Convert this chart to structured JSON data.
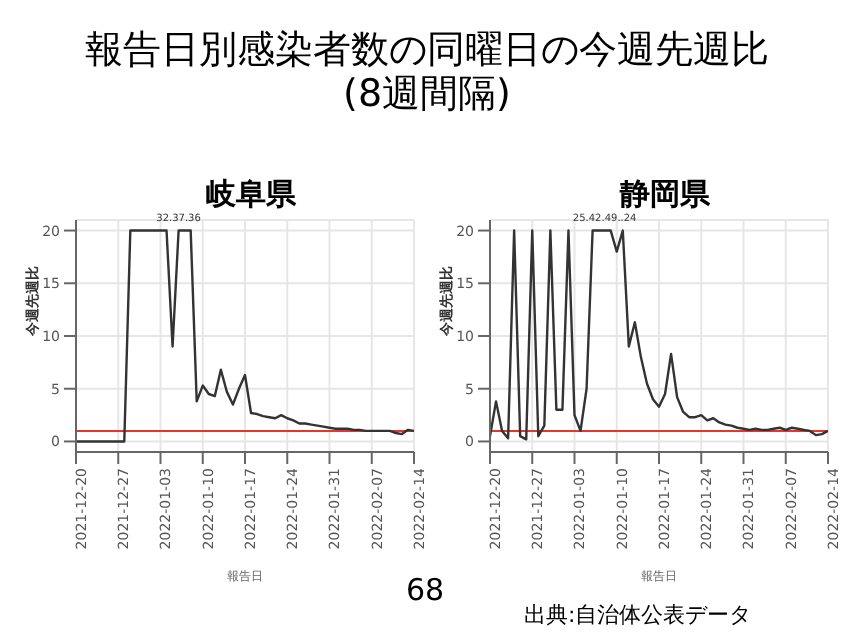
{
  "chart_data": [
    {
      "type": "line",
      "title": "岐阜県",
      "xlabel": "報告日",
      "ylabel": "今週先週比",
      "annotations": [
        "報告日別感染者数の同曜日の今週先週比\n(8週間隔)",
        {
          "text": "32.37.36",
          "x": "2022-01-06",
          "y": 20
        }
      ],
      "x": [
        "2021-12-20",
        "2021-12-21",
        "2021-12-22",
        "2021-12-23",
        "2021-12-24",
        "2021-12-25",
        "2021-12-26",
        "2021-12-27",
        "2021-12-28",
        "2021-12-29",
        "2021-12-30",
        "2021-12-31",
        "2022-01-01",
        "2022-01-02",
        "2022-01-03",
        "2022-01-04",
        "2022-01-05",
        "2022-01-06",
        "2022-01-07",
        "2022-01-08",
        "2022-01-09",
        "2022-01-10",
        "2022-01-11",
        "2022-01-12",
        "2022-01-13",
        "2022-01-14",
        "2022-01-15",
        "2022-01-16",
        "2022-01-17",
        "2022-01-18",
        "2022-01-19",
        "2022-01-20",
        "2022-01-21",
        "2022-01-22",
        "2022-01-23",
        "2022-01-24",
        "2022-01-25",
        "2022-01-26",
        "2022-01-27",
        "2022-01-28",
        "2022-01-29",
        "2022-01-30",
        "2022-01-31",
        "2022-02-01",
        "2022-02-02",
        "2022-02-03",
        "2022-02-04",
        "2022-02-05",
        "2022-02-06",
        "2022-02-07",
        "2022-02-08",
        "2022-02-09",
        "2022-02-10",
        "2022-02-11",
        "2022-02-12",
        "2022-02-13",
        "2022-02-14"
      ],
      "series": [
        {
          "color": "#333333",
          "values": [
            0,
            0,
            0,
            0,
            0,
            0,
            0,
            0,
            0,
            20,
            20,
            20,
            20,
            20,
            20,
            20,
            9,
            20,
            20,
            20,
            3.8,
            5.3,
            4.5,
            4.3,
            6.8,
            4.7,
            3.5,
            5,
            6.3,
            2.7,
            2.6,
            2.4,
            2.3,
            2.2,
            2.5,
            2.2,
            2,
            1.7,
            1.7,
            1.6,
            1.5,
            1.4,
            1.3,
            1.2,
            1.2,
            1.2,
            1.1,
            1.1,
            1,
            1,
            1,
            1,
            1,
            0.8,
            0.7,
            1.1,
            1
          ]
        }
      ],
      "xlim": [
        "2021-12-20",
        "2022-02-14"
      ],
      "xticks": [
        "2021-12-20",
        "2021-12-27",
        "2022-01-03",
        "2022-01-10",
        "2022-01-17",
        "2022-01-24",
        "2022-01-31",
        "2022-02-07",
        "2022-02-14"
      ],
      "ylim": [
        -1,
        21
      ],
      "yticks": [
        0,
        5,
        10,
        15,
        20
      ],
      "grid": true,
      "legend": false,
      "ref_lines": [
        {
          "axis": "y",
          "value": 1,
          "color": "#e8342c"
        }
      ]
    },
    {
      "type": "line",
      "title": "静岡県",
      "xlabel": "報告日",
      "ylabel": "今週先週比",
      "annotations": [
        "68",
        "出典:自治体公表データ",
        {
          "text": "25.42.49..24",
          "x": "2022-01-08",
          "y": 20
        }
      ],
      "x": [
        "2021-12-20",
        "2021-12-21",
        "2021-12-22",
        "2021-12-23",
        "2021-12-24",
        "2021-12-25",
        "2021-12-26",
        "2021-12-27",
        "2021-12-28",
        "2021-12-29",
        "2021-12-30",
        "2021-12-31",
        "2022-01-01",
        "2022-01-02",
        "2022-01-03",
        "2022-01-04",
        "2022-01-05",
        "2022-01-06",
        "2022-01-07",
        "2022-01-08",
        "2022-01-09",
        "2022-01-10",
        "2022-01-11",
        "2022-01-12",
        "2022-01-13",
        "2022-01-14",
        "2022-01-15",
        "2022-01-16",
        "2022-01-17",
        "2022-01-18",
        "2022-01-19",
        "2022-01-20",
        "2022-01-21",
        "2022-01-22",
        "2022-01-23",
        "2022-01-24",
        "2022-01-25",
        "2022-01-26",
        "2022-01-27",
        "2022-01-28",
        "2022-01-29",
        "2022-01-30",
        "2022-01-31",
        "2022-02-01",
        "2022-02-02",
        "2022-02-03",
        "2022-02-04",
        "2022-02-05",
        "2022-02-06",
        "2022-02-07",
        "2022-02-08",
        "2022-02-09",
        "2022-02-10",
        "2022-02-11",
        "2022-02-12",
        "2022-02-13",
        "2022-02-14"
      ],
      "series": [
        {
          "color": "#333333",
          "values": [
            0.5,
            3.8,
            1,
            0.3,
            20,
            0.5,
            0.2,
            20,
            0.5,
            1.5,
            20,
            3,
            3,
            20,
            2.5,
            1,
            5,
            20,
            20,
            20,
            20,
            18,
            20,
            9,
            11.3,
            8,
            5.5,
            4,
            3.3,
            4.5,
            8.3,
            4.2,
            2.8,
            2.3,
            2.3,
            2.5,
            2,
            2.2,
            1.8,
            1.6,
            1.5,
            1.3,
            1.2,
            1.1,
            1.2,
            1.1,
            1.1,
            1.2,
            1.3,
            1.1,
            1.3,
            1.2,
            1.1,
            1,
            0.6,
            0.7,
            1
          ]
        }
      ],
      "xlim": [
        "2021-12-20",
        "2022-02-14"
      ],
      "xticks": [
        "2021-12-20",
        "2021-12-27",
        "2022-01-03",
        "2022-01-10",
        "2022-01-17",
        "2022-01-24",
        "2022-01-31",
        "2022-02-07",
        "2022-02-14"
      ],
      "ylim": [
        -1,
        21
      ],
      "yticks": [
        0,
        5,
        10,
        15,
        20
      ],
      "grid": true,
      "legend": false,
      "ref_lines": [
        {
          "axis": "y",
          "value": 1,
          "color": "#e8342c"
        }
      ]
    }
  ]
}
